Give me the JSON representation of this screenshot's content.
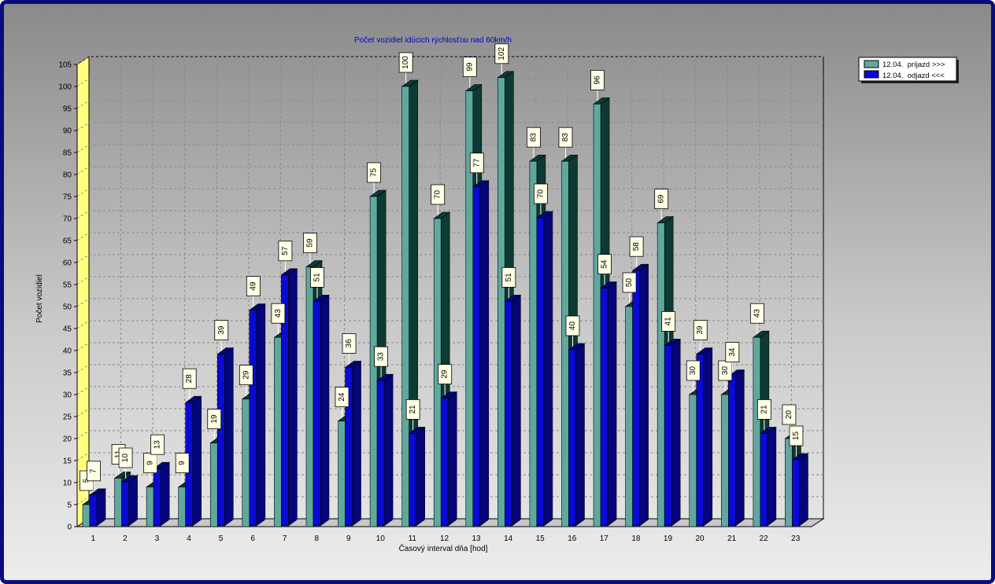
{
  "chart_data": {
    "type": "bar",
    "title": "Počet vozidiel idúcich rýchlosťou nad 60km/h",
    "xlabel": "Časový interval dňa [hod]",
    "ylabel": "Počet vozidiel",
    "categories": [
      "1",
      "2",
      "3",
      "4",
      "5",
      "6",
      "7",
      "8",
      "9",
      "10",
      "11",
      "12",
      "13",
      "14",
      "15",
      "16",
      "17",
      "18",
      "19",
      "20",
      "21",
      "22",
      "23"
    ],
    "series": [
      {
        "name": "12.04.  príjazd >>>",
        "color": "#5fa8a0",
        "side_color": "#0d3a33",
        "values": [
          5,
          11,
          9,
          9,
          19,
          29,
          43,
          59,
          24,
          75,
          100,
          70,
          99,
          102,
          83,
          83,
          96,
          50,
          69,
          30,
          30,
          43,
          20
        ]
      },
      {
        "name": "12.04.  odjazd <<<",
        "color": "#0a0ad2",
        "side_color": "#05057a",
        "values": [
          7,
          10,
          13,
          28,
          39,
          49,
          57,
          51,
          36,
          33,
          21,
          29,
          77,
          51,
          70,
          40,
          54,
          58,
          41,
          39,
          34,
          21,
          15
        ]
      }
    ],
    "ylim": [
      0,
      105
    ],
    "yticks": [
      0,
      5,
      10,
      15,
      20,
      25,
      30,
      35,
      40,
      45,
      50,
      55,
      60,
      65,
      70,
      75,
      80,
      85,
      90,
      95,
      100,
      105
    ],
    "grid": true,
    "legend_position": "top-right",
    "three_d": true,
    "colors": {
      "wall": "#ffff80",
      "title": "#0000cc",
      "frame": "#0b0b7a"
    }
  }
}
